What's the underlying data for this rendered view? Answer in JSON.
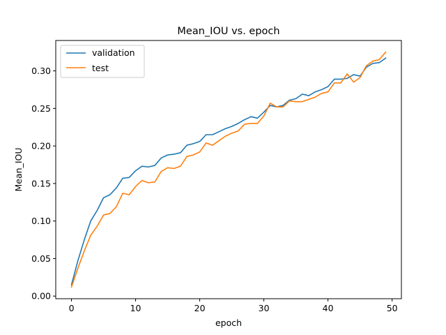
{
  "chart_data": {
    "type": "line",
    "title": "Mean_IOU vs. epoch",
    "xlabel": "epoch",
    "ylabel": "Mean_IOU",
    "xlim": [
      -2.45,
      51.45
    ],
    "ylim": [
      -0.0035,
      0.3405
    ],
    "xticks": [
      0,
      10,
      20,
      30,
      40,
      50
    ],
    "xtick_labels": [
      "0",
      "10",
      "20",
      "30",
      "40",
      "50"
    ],
    "yticks": [
      0.0,
      0.05,
      0.1,
      0.15,
      0.2,
      0.25,
      0.3
    ],
    "ytick_labels": [
      "0.00",
      "0.05",
      "0.10",
      "0.15",
      "0.20",
      "0.25",
      "0.30"
    ],
    "grid": false,
    "legend_position": "upper-left",
    "x": [
      0,
      1,
      2,
      3,
      4,
      5,
      6,
      7,
      8,
      9,
      10,
      11,
      12,
      13,
      14,
      15,
      16,
      17,
      18,
      19,
      20,
      21,
      22,
      23,
      24,
      25,
      26,
      27,
      28,
      29,
      30,
      31,
      32,
      33,
      34,
      35,
      36,
      37,
      38,
      39,
      40,
      41,
      42,
      43,
      44,
      45,
      46,
      47,
      48,
      49
    ],
    "series": [
      {
        "name": "validation",
        "color": "#1f77b4",
        "values": [
          0.015,
          0.047,
          0.075,
          0.1,
          0.114,
          0.131,
          0.135,
          0.144,
          0.157,
          0.158,
          0.167,
          0.173,
          0.172,
          0.174,
          0.184,
          0.188,
          0.189,
          0.191,
          0.201,
          0.203,
          0.206,
          0.215,
          0.215,
          0.219,
          0.223,
          0.226,
          0.23,
          0.235,
          0.239,
          0.237,
          0.245,
          0.254,
          0.252,
          0.254,
          0.261,
          0.263,
          0.269,
          0.267,
          0.272,
          0.275,
          0.279,
          0.289,
          0.289,
          0.29,
          0.295,
          0.293,
          0.305,
          0.31,
          0.311,
          0.317
        ]
      },
      {
        "name": "test",
        "color": "#ff7f0e",
        "values": [
          0.012,
          0.037,
          0.06,
          0.081,
          0.093,
          0.108,
          0.11,
          0.119,
          0.137,
          0.135,
          0.146,
          0.154,
          0.151,
          0.152,
          0.166,
          0.171,
          0.17,
          0.173,
          0.186,
          0.188,
          0.192,
          0.204,
          0.201,
          0.207,
          0.213,
          0.217,
          0.22,
          0.229,
          0.23,
          0.23,
          0.24,
          0.257,
          0.252,
          0.252,
          0.26,
          0.259,
          0.259,
          0.262,
          0.265,
          0.27,
          0.272,
          0.284,
          0.284,
          0.296,
          0.285,
          0.291,
          0.307,
          0.313,
          0.315,
          0.325
        ]
      }
    ]
  }
}
